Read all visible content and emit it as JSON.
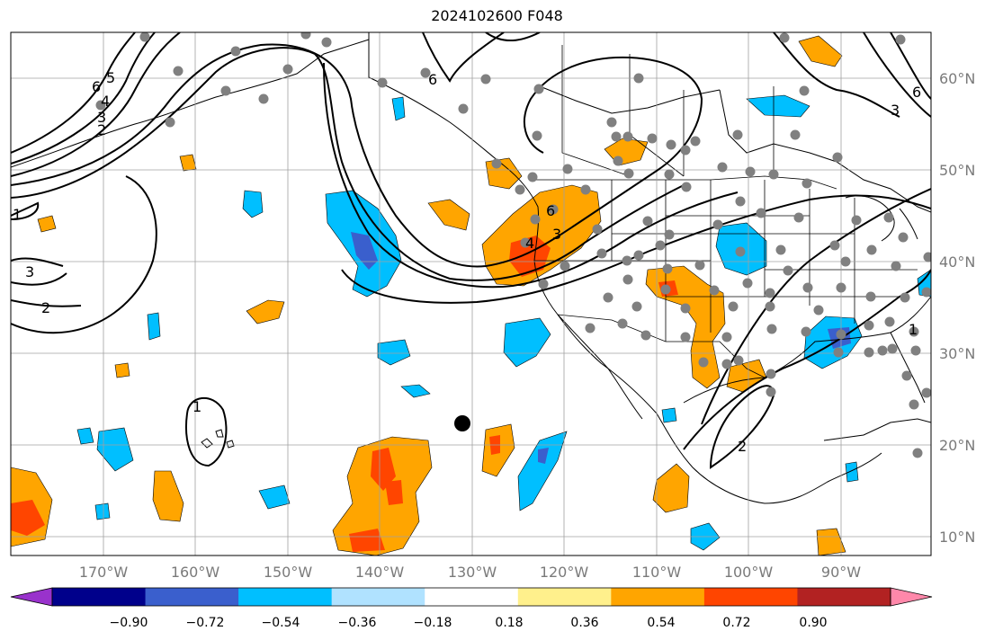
{
  "title": "2024102600 F048",
  "longitude_labels": [
    "170°W",
    "160°W",
    "150°W",
    "140°W",
    "130°W",
    "120°W",
    "110°W",
    "100°W",
    "90°W"
  ],
  "latitude_labels": [
    "60°N",
    "50°N",
    "40°N",
    "30°N",
    "20°N",
    "10°N"
  ],
  "contour_labels": [
    "6",
    "5",
    "4",
    "3",
    "2",
    "1",
    "3",
    "2",
    "6",
    "4",
    "3",
    "6",
    "1",
    "2",
    "6",
    "3",
    "1"
  ],
  "colorbar": {
    "tick_labels": [
      "−0.90",
      "−0.72",
      "−0.54",
      "−0.36",
      "−0.18",
      "0.18",
      "0.36",
      "0.54",
      "0.72",
      "0.90"
    ],
    "colors": [
      "#9932cc",
      "#00008b",
      "#3a5fcd",
      "#00bfff",
      "#b0e2ff",
      "#ffffff",
      "#fff08c",
      "#ffa500",
      "#ff4500",
      "#b22222",
      "#ff88aa"
    ]
  },
  "palette": {
    "station_dot": "#808080",
    "marker": "#000000",
    "grid": "#a0a0a0"
  }
}
